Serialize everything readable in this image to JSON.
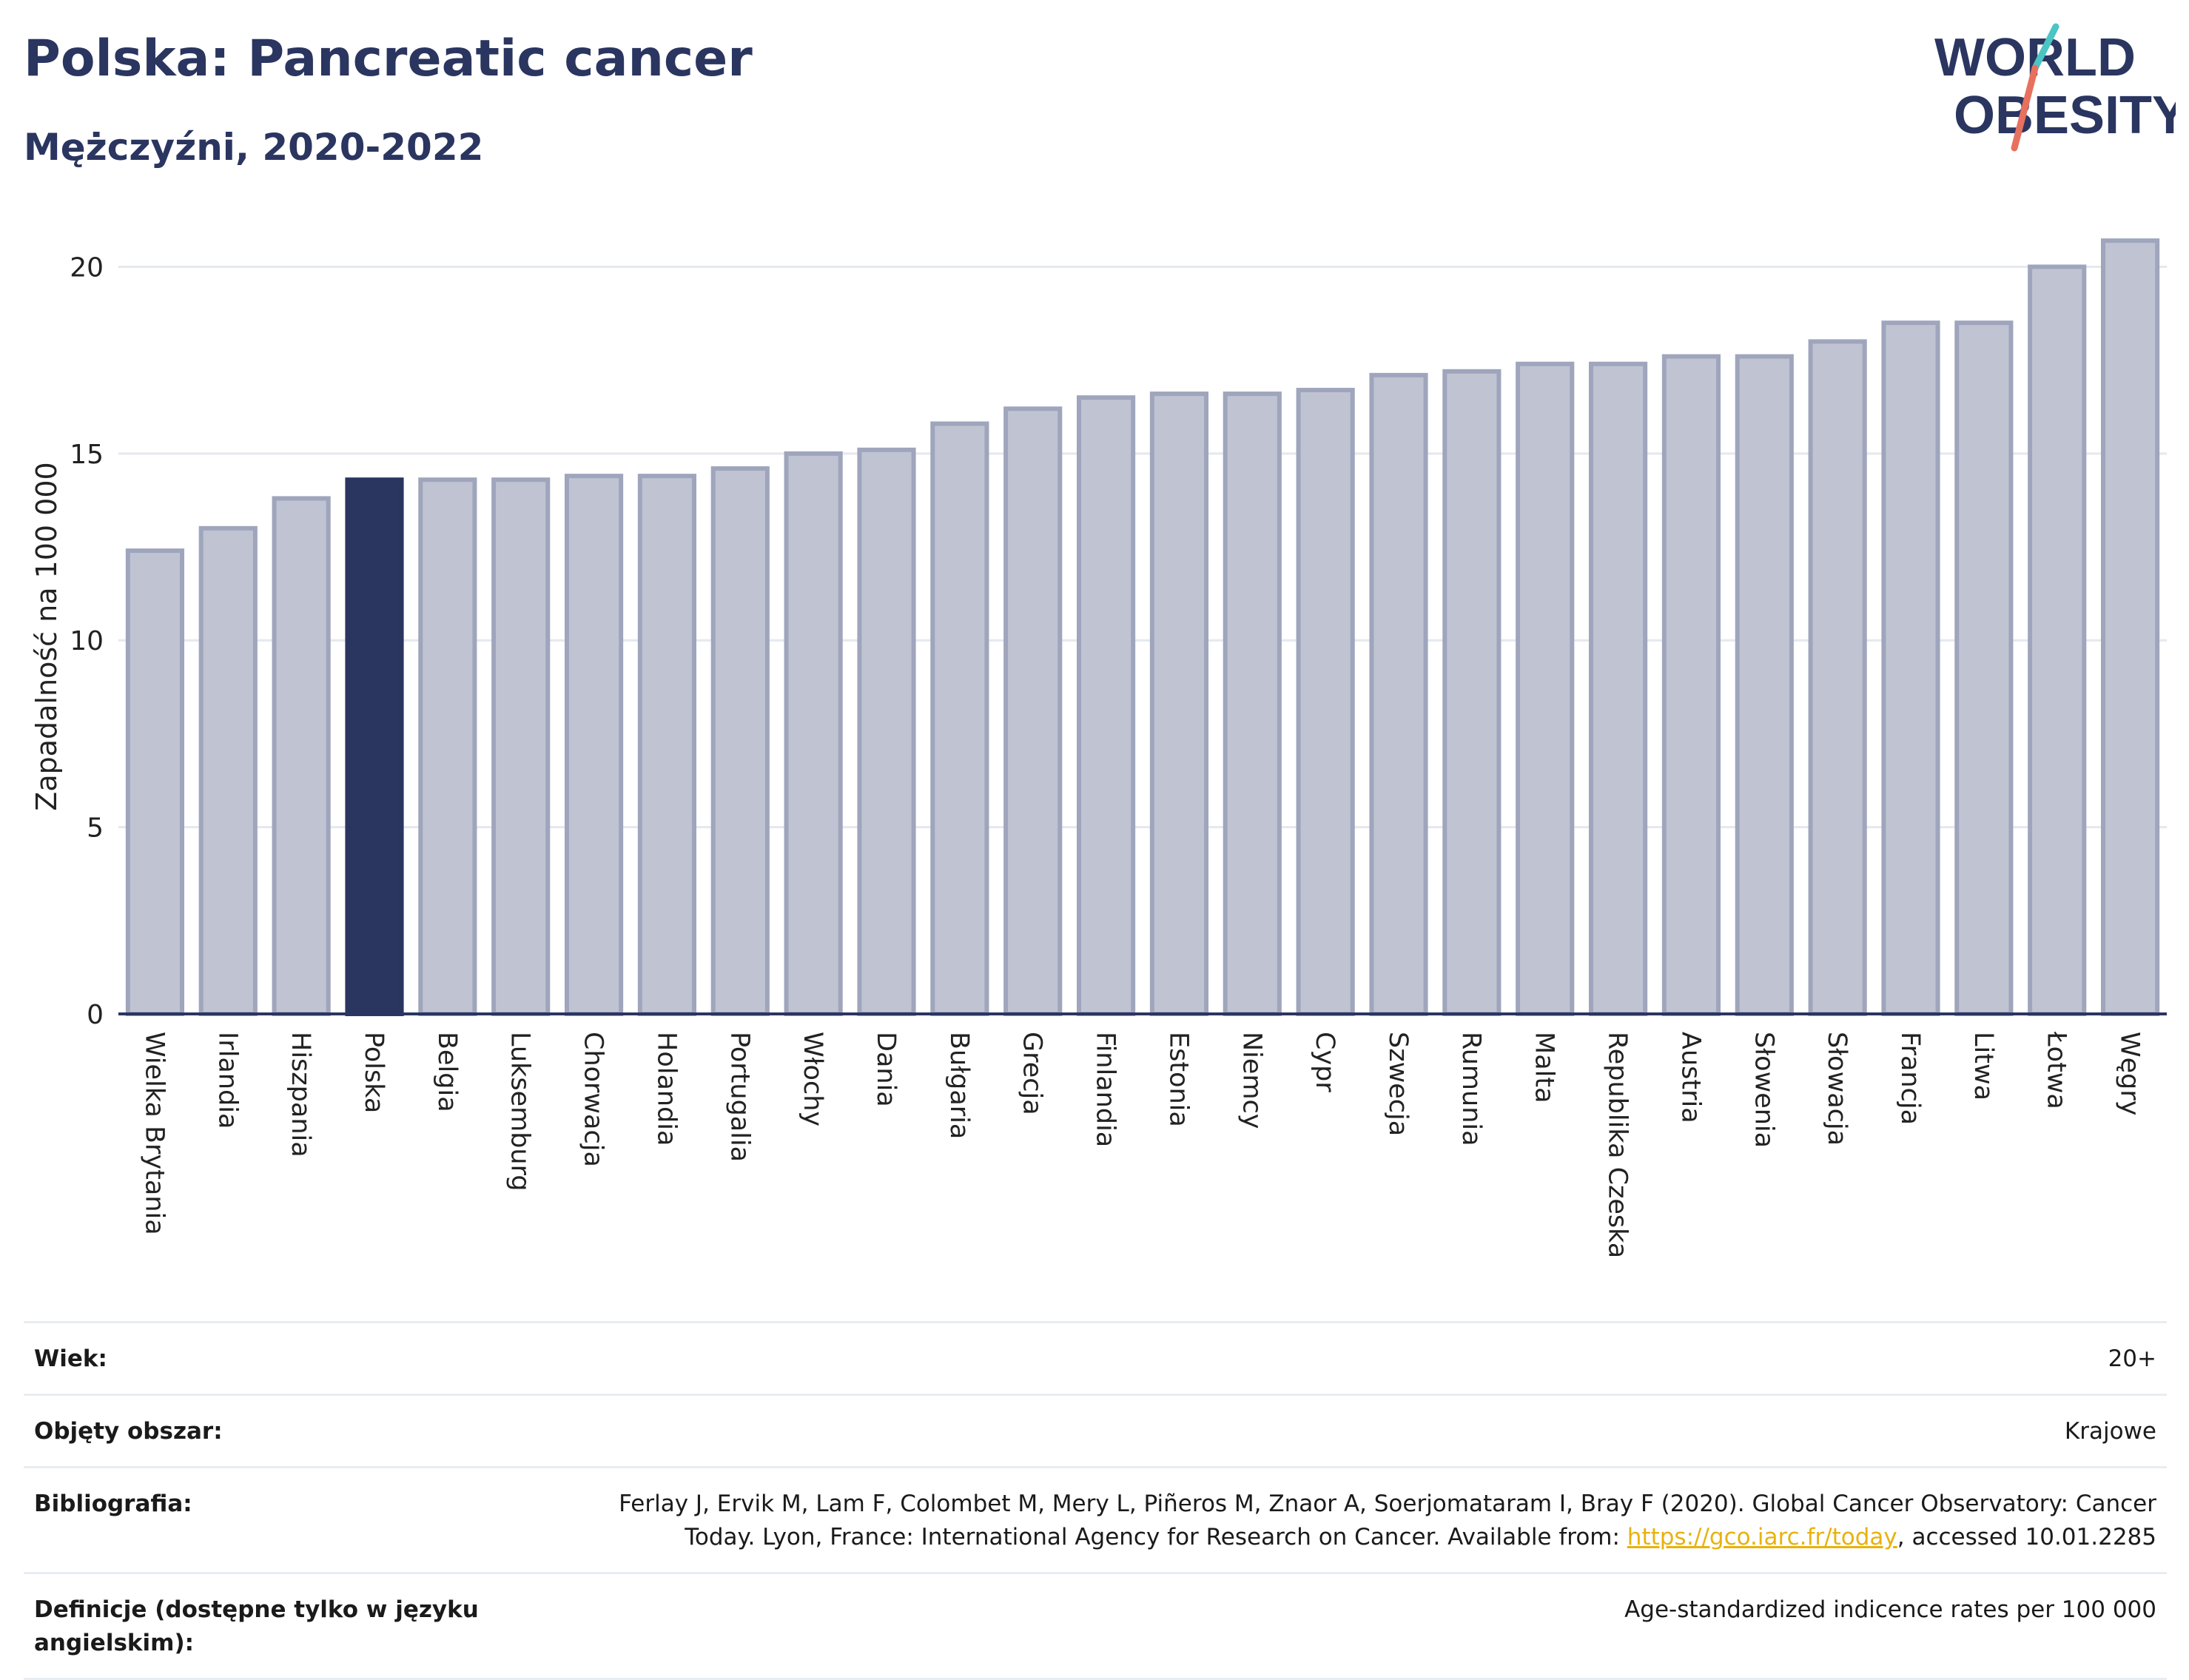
{
  "header": {
    "title": "Polska: Pancreatic cancer",
    "subtitle": "Mężczyźni, 2020-2022"
  },
  "logo": {
    "line1": "WORLD",
    "line2": "OBESITY",
    "accent_colors": [
      "#4bc4c4",
      "#e8705e"
    ]
  },
  "colors": {
    "bar": "#c0c4d2",
    "bar_border": "#9fa5bc",
    "highlight": "#2a3560",
    "axis": "#2a3560",
    "grid": "#e4e8ef"
  },
  "chart_data": {
    "type": "bar",
    "ylabel": "Zapadalność na 100 000",
    "xlabel": "",
    "ylim": [
      0,
      21
    ],
    "yticks": [
      0,
      5,
      10,
      15,
      20
    ],
    "grid": true,
    "highlight": "Polska",
    "categories": [
      "Wielka Brytania",
      "Irlandia",
      "Hiszpania",
      "Polska",
      "Belgia",
      "Luksemburg",
      "Chorwacja",
      "Holandia",
      "Portugalia",
      "Włochy",
      "Dania",
      "Bułgaria",
      "Grecja",
      "Finlandia",
      "Estonia",
      "Niemcy",
      "Cypr",
      "Szwecja",
      "Rumunia",
      "Malta",
      "Republika Czeska",
      "Austria",
      "Słowenia",
      "Słowacja",
      "Francja",
      "Litwa",
      "Łotwa",
      "Węgry"
    ],
    "values": [
      12.4,
      13.0,
      13.8,
      14.3,
      14.3,
      14.3,
      14.4,
      14.4,
      14.6,
      15.0,
      15.1,
      15.8,
      16.2,
      16.5,
      16.6,
      16.6,
      16.7,
      17.1,
      17.2,
      17.4,
      17.4,
      17.6,
      17.6,
      18.0,
      18.5,
      18.5,
      20.0,
      20.7
    ]
  },
  "meta": {
    "age_label": "Wiek:",
    "age_value": "20+",
    "coverage_label": "Objęty obszar:",
    "coverage_value": "Krajowe",
    "bib_label": "Bibliografia:",
    "bib_text_1": "Ferlay J, Ervik M, Lam F, Colombet M, Mery L, Piñeros M, Znaor A, Soerjomataram I, Bray F (2020). Global Cancer Observatory: Cancer Today. Lyon, France: International Agency for Research on Cancer. Available from: ",
    "bib_link": "https://gco.iarc.fr/today",
    "bib_text_2": ", accessed 10.01.2285",
    "def_label": "Definicje (dostępne tylko w języku angielskim):",
    "def_value": "Age-standardized indicence rates per 100 000"
  }
}
